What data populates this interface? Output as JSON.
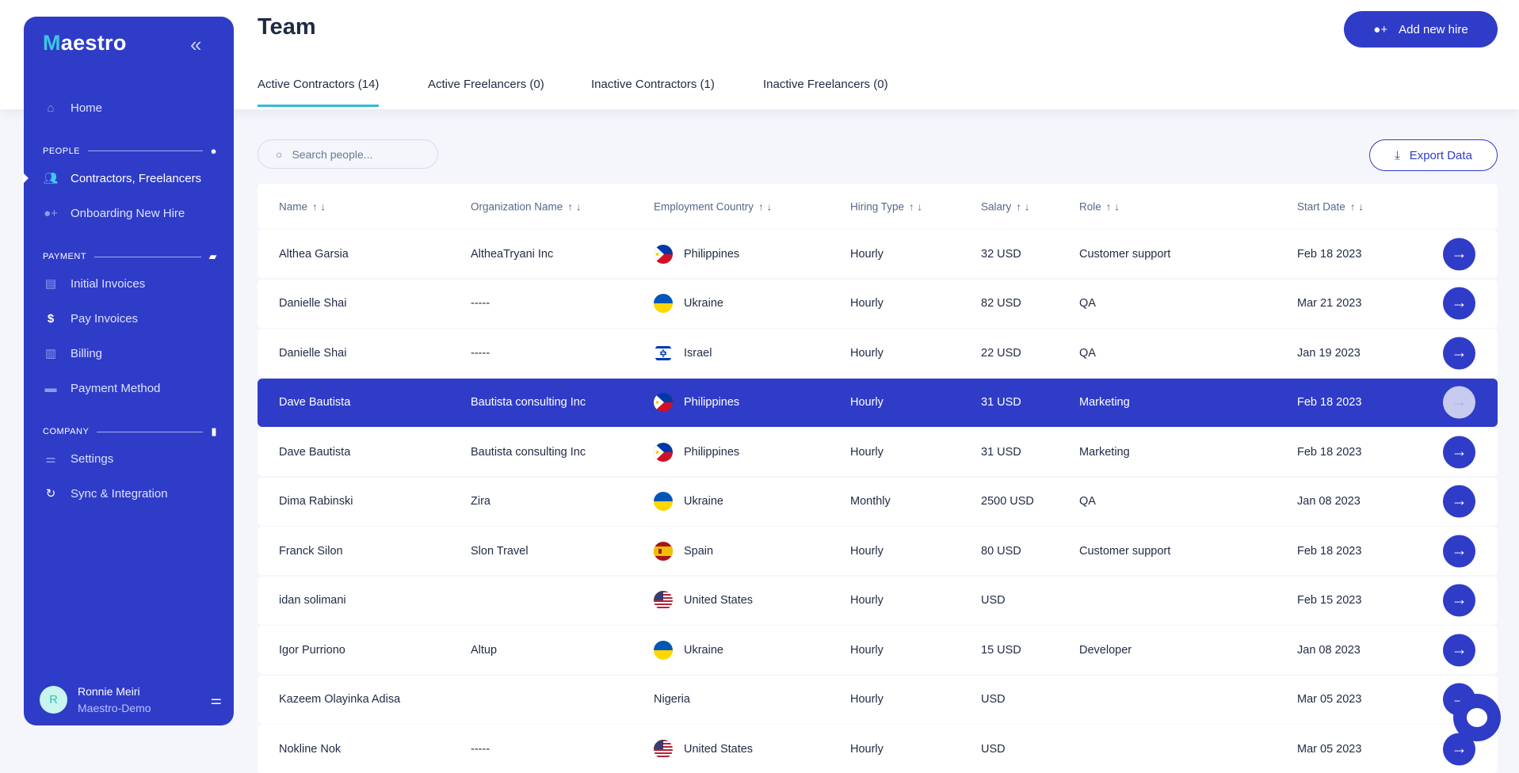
{
  "sidebar": {
    "logo_first": "M",
    "logo_rest": "aestro",
    "home": "Home",
    "sections": {
      "people": "PEOPLE",
      "payment": "PAYMENT",
      "company": "COMPANY"
    },
    "items": {
      "contractors": "Contractors, Freelancers",
      "onboarding": "Onboarding New Hire",
      "initial_invoices": "Initial Invoices",
      "pay_invoices": "Pay Invoices",
      "billing": "Billing",
      "payment_method": "Payment Method",
      "settings": "Settings",
      "sync": "Sync & Integration"
    },
    "user": {
      "initial": "R",
      "name": "Ronnie Meiri",
      "org": "Maestro-Demo"
    }
  },
  "header": {
    "title": "Team",
    "add_button": "Add new hire"
  },
  "tabs": [
    "Active Contractors (14)",
    "Active Freelancers (0)",
    "Inactive Contractors (1)",
    "Inactive Freelancers (0)"
  ],
  "search": {
    "placeholder": "Search people..."
  },
  "export_label": "Export Data",
  "columns": [
    "Name",
    "Organization Name",
    "Employment Country",
    "Hiring Type",
    "Salary",
    "Role",
    "Start Date"
  ],
  "rows": [
    {
      "name": "Althea Garsia",
      "org": "AltheaTryani Inc",
      "country": "Philippines",
      "flag": "ph",
      "type": "Hourly",
      "salary": "32 USD",
      "role": "Customer support",
      "start": "Feb 18 2023"
    },
    {
      "name": "Danielle Shai",
      "org": "-----",
      "country": "Ukraine",
      "flag": "ua",
      "type": "Hourly",
      "salary": "82 USD",
      "role": "QA",
      "start": "Mar 21 2023"
    },
    {
      "name": "Danielle Shai",
      "org": "-----",
      "country": "Israel",
      "flag": "il",
      "type": "Hourly",
      "salary": "22 USD",
      "role": "QA",
      "start": "Jan 19 2023"
    },
    {
      "name": "Dave Bautista",
      "org": "Bautista consulting Inc",
      "country": "Philippines",
      "flag": "ph",
      "type": "Hourly",
      "salary": "31 USD",
      "role": "Marketing",
      "start": "Feb 18 2023",
      "selected": true
    },
    {
      "name": "Dave Bautista",
      "org": "Bautista consulting Inc",
      "country": "Philippines",
      "flag": "ph",
      "type": "Hourly",
      "salary": "31 USD",
      "role": "Marketing",
      "start": "Feb 18 2023"
    },
    {
      "name": "Dima Rabinski",
      "org": "Zira",
      "country": "Ukraine",
      "flag": "ua",
      "type": "Monthly",
      "salary": "2500 USD",
      "role": "QA",
      "start": "Jan 08 2023"
    },
    {
      "name": "Franck Silon",
      "org": "Slon Travel",
      "country": "Spain",
      "flag": "es",
      "type": "Hourly",
      "salary": "80 USD",
      "role": "Customer support",
      "start": "Feb 18 2023"
    },
    {
      "name": "idan solimani",
      "org": "",
      "country": "United States",
      "flag": "us",
      "type": "Hourly",
      "salary": "USD",
      "role": "",
      "start": "Feb 15 2023"
    },
    {
      "name": "Igor Purriono",
      "org": "Altup",
      "country": "Ukraine",
      "flag": "ua",
      "type": "Hourly",
      "salary": "15 USD",
      "role": "Developer",
      "start": "Jan 08 2023"
    },
    {
      "name": "Kazeem Olayinka Adisa",
      "org": "",
      "country": "Nigeria",
      "flag": "",
      "type": "Hourly",
      "salary": "USD",
      "role": "",
      "start": "Mar 05 2023"
    },
    {
      "name": "Nokline Nok",
      "org": "-----",
      "country": "United States",
      "flag": "us",
      "type": "Hourly",
      "salary": "USD",
      "role": "",
      "start": "Mar 05 2023"
    }
  ],
  "colors": {
    "brand": "#2f3cc8",
    "accent": "#36b9d8"
  }
}
